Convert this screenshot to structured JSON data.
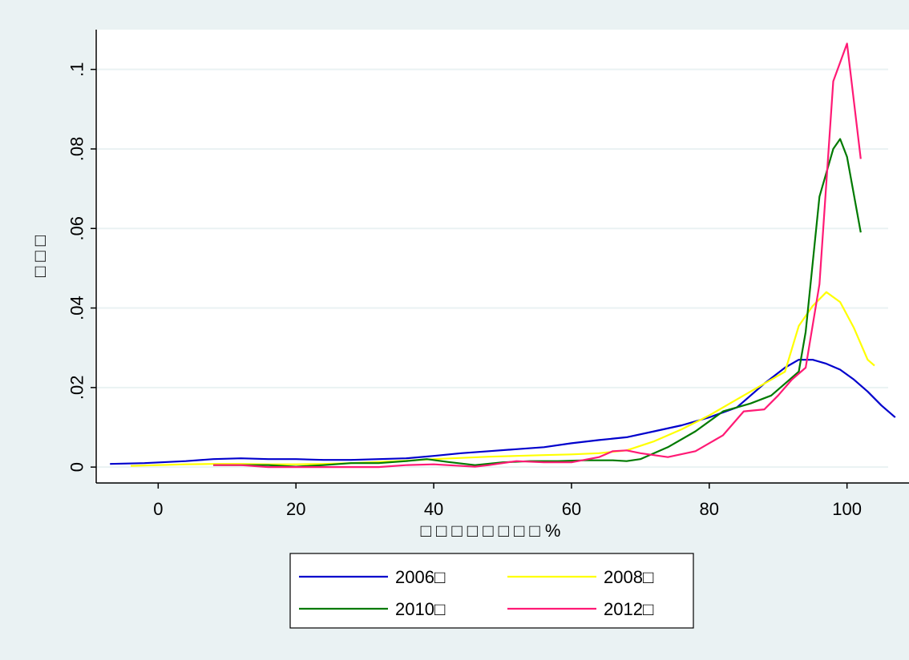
{
  "chart_data": {
    "type": "line",
    "title": "",
    "xlabel": "□ □ □ □ □ □ □ □ %",
    "ylabel": "□ □ □",
    "xlim": [
      -9,
      109
    ],
    "ylim": [
      -0.004,
      0.11
    ],
    "xticks": [
      0,
      20,
      40,
      60,
      80,
      100
    ],
    "xtick_labels": [
      "0",
      "20",
      "40",
      "60",
      "80",
      "100"
    ],
    "yticks": [
      0,
      0.02,
      0.04,
      0.06,
      0.08,
      0.1
    ],
    "ytick_labels": [
      "0",
      ".02",
      ".04",
      ".06",
      ".08",
      ".1"
    ],
    "grid": "horizontal",
    "legend_position": "bottom",
    "colors": {
      "background": "#eaf2f3",
      "plot_background": "#ffffff",
      "grid": "#eaf2f3"
    },
    "series": [
      {
        "name": "2006□",
        "color": "#0000cc",
        "x": [
          -7,
          -2,
          4,
          8,
          12,
          16,
          20,
          24,
          28,
          32,
          36,
          40,
          44,
          48,
          52,
          56,
          60,
          64,
          68,
          72,
          76,
          80,
          84,
          88,
          91,
          93,
          95,
          97,
          99,
          101,
          103,
          105,
          107
        ],
        "y": [
          0.0008,
          0.001,
          0.0015,
          0.002,
          0.0022,
          0.002,
          0.002,
          0.0018,
          0.0018,
          0.002,
          0.0022,
          0.0028,
          0.0035,
          0.004,
          0.0045,
          0.005,
          0.006,
          0.0068,
          0.0075,
          0.009,
          0.0105,
          0.0125,
          0.015,
          0.021,
          0.025,
          0.027,
          0.027,
          0.026,
          0.0245,
          0.022,
          0.019,
          0.0155,
          0.0125
        ]
      },
      {
        "name": "2008□",
        "color": "#ffff00",
        "x": [
          -4,
          0,
          4,
          8,
          12,
          16,
          20,
          24,
          28,
          32,
          36,
          40,
          44,
          48,
          52,
          56,
          60,
          64,
          68,
          72,
          76,
          80,
          84,
          88,
          91,
          93,
          95,
          97,
          99,
          101,
          103,
          104
        ],
        "y": [
          0.0003,
          0.0005,
          0.0007,
          0.0008,
          0.0008,
          0.0007,
          0.0007,
          0.0008,
          0.001,
          0.0013,
          0.0016,
          0.002,
          0.0023,
          0.0026,
          0.0028,
          0.003,
          0.0032,
          0.0035,
          0.0042,
          0.0065,
          0.0095,
          0.013,
          0.017,
          0.021,
          0.024,
          0.0355,
          0.0405,
          0.044,
          0.0415,
          0.035,
          0.027,
          0.0255
        ]
      },
      {
        "name": "2010□",
        "color": "#007a00",
        "x": [
          8,
          12,
          16,
          20,
          24,
          28,
          32,
          36,
          39,
          42,
          46,
          50,
          54,
          58,
          62,
          66,
          68,
          70,
          74,
          78,
          82,
          86,
          89,
          91,
          93,
          94,
          96,
          98,
          99,
          100,
          102
        ],
        "y": [
          0.0005,
          0.0005,
          0.0005,
          0.0001,
          0.0005,
          0.001,
          0.001,
          0.0015,
          0.002,
          0.0013,
          0.0005,
          0.0012,
          0.0015,
          0.0015,
          0.0017,
          0.0017,
          0.0015,
          0.002,
          0.005,
          0.009,
          0.014,
          0.016,
          0.018,
          0.021,
          0.024,
          0.034,
          0.068,
          0.08,
          0.0825,
          0.078,
          0.059
        ]
      },
      {
        "name": "2012□",
        "color": "#ff1a75",
        "x": [
          8,
          12,
          16,
          20,
          24,
          28,
          32,
          36,
          40,
          44,
          46,
          48,
          52,
          56,
          60,
          64,
          66,
          68,
          70,
          74,
          78,
          82,
          85,
          88,
          90,
          92,
          94,
          96,
          98,
          100,
          102
        ],
        "y": [
          0.0005,
          0.0005,
          0,
          0,
          0,
          0,
          0,
          0.0005,
          0.0007,
          0.0003,
          0.0001,
          0.0005,
          0.0015,
          0.0012,
          0.0012,
          0.0025,
          0.004,
          0.0042,
          0.0035,
          0.0025,
          0.004,
          0.008,
          0.014,
          0.0145,
          0.018,
          0.022,
          0.025,
          0.046,
          0.097,
          0.1065,
          0.0775
        ]
      }
    ]
  }
}
